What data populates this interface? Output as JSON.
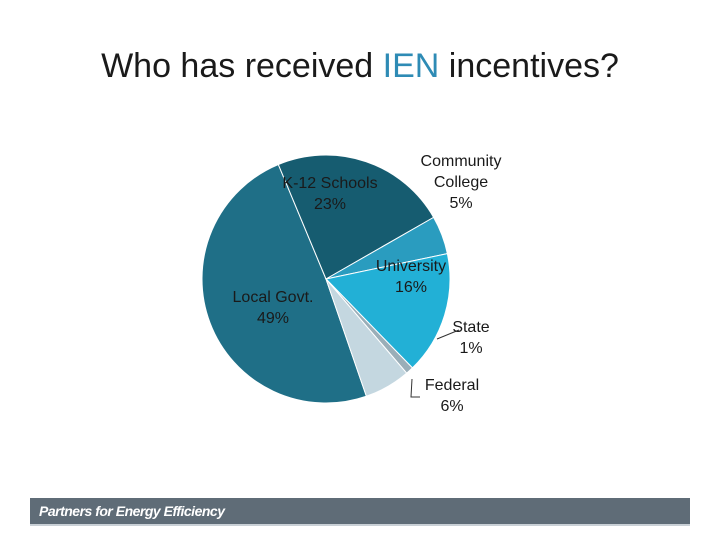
{
  "title": {
    "before": "Who has received ",
    "highlight": "IEN",
    "after": " incentives?"
  },
  "chart_data": {
    "type": "pie",
    "title": "",
    "slices": [
      {
        "label": "Local Govt.",
        "value": 49,
        "display": "49%",
        "color": "#1f6f87"
      },
      {
        "label": "K-12 Schools",
        "value": 23,
        "display": "23%",
        "color": "#165c70"
      },
      {
        "label": "Community College",
        "value": 5,
        "display": "5%",
        "color": "#2a9cbf"
      },
      {
        "label": "University",
        "value": 16,
        "display": "16%",
        "color": "#22b0d6"
      },
      {
        "label": "State",
        "value": 1,
        "display": "1%",
        "color": "#9aaeb8"
      },
      {
        "label": "Federal",
        "value": 6,
        "display": "6%",
        "color": "#c4d7e0"
      }
    ]
  },
  "footer": {
    "text": "Partners for Energy Efficiency"
  }
}
